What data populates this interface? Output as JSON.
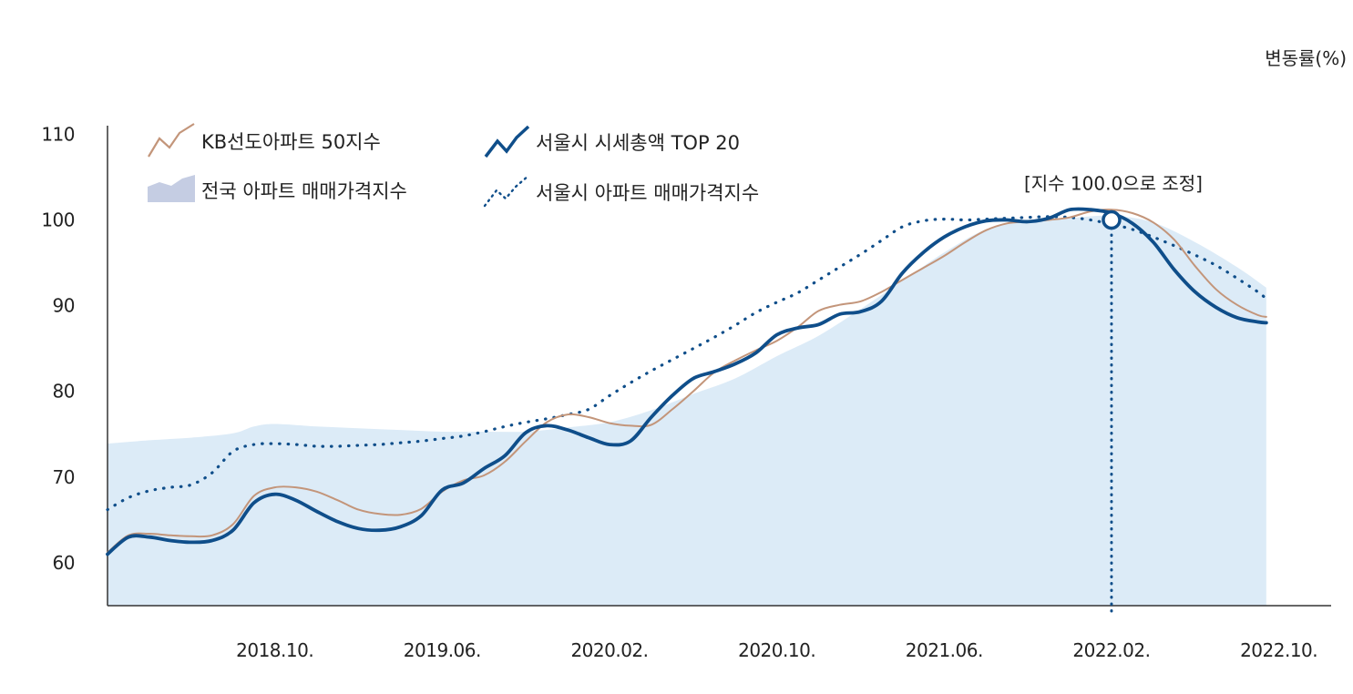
{
  "chart_data": {
    "type": "line",
    "unit_label": "변동률(%)",
    "y_axis": {
      "min": 55,
      "max": 111,
      "ticks": [
        60,
        70,
        80,
        90,
        100,
        110
      ]
    },
    "x_axis": {
      "start": 2018.0833,
      "end": 2022.9583,
      "tick_labels": [
        {
          "label": "2018.10.",
          "t": 2018.75
        },
        {
          "label": "2019.06.",
          "t": 2019.4167
        },
        {
          "label": "2020.02.",
          "t": 2020.0833
        },
        {
          "label": "2020.10.",
          "t": 2020.75
        },
        {
          "label": "2021.06.",
          "t": 2021.4167
        },
        {
          "label": "2022.02.",
          "t": 2022.0833
        },
        {
          "label": "2022.10.",
          "t": 2022.75
        }
      ]
    },
    "annotation": {
      "label": "[지수 100.0으로 조정]",
      "t": 2022.0833,
      "value": 100
    },
    "series": [
      {
        "name": "KB선도아파트 50지수",
        "style": "line",
        "color": "#c3957a",
        "points": [
          [
            2018.0833,
            61.2
          ],
          [
            2018.1667,
            63.2
          ],
          [
            2018.25,
            63.4
          ],
          [
            2018.3333,
            63.2
          ],
          [
            2018.4167,
            63.1
          ],
          [
            2018.5,
            63.2
          ],
          [
            2018.5833,
            64.5
          ],
          [
            2018.6667,
            67.8
          ],
          [
            2018.75,
            68.8
          ],
          [
            2018.8333,
            68.8
          ],
          [
            2018.9167,
            68.3
          ],
          [
            2019.0,
            67.3
          ],
          [
            2019.0833,
            66.2
          ],
          [
            2019.1667,
            65.7
          ],
          [
            2019.25,
            65.6
          ],
          [
            2019.3333,
            66.3
          ],
          [
            2019.4167,
            68.3
          ],
          [
            2019.5,
            69.6
          ],
          [
            2019.5833,
            70.2
          ],
          [
            2019.6667,
            71.8
          ],
          [
            2019.75,
            74.2
          ],
          [
            2019.8333,
            76.4
          ],
          [
            2019.9167,
            77.3
          ],
          [
            2020.0,
            77.0
          ],
          [
            2020.0833,
            76.3
          ],
          [
            2020.1667,
            76.0
          ],
          [
            2020.25,
            76.1
          ],
          [
            2020.3333,
            77.9
          ],
          [
            2020.4167,
            80.0
          ],
          [
            2020.5,
            82.2
          ],
          [
            2020.5833,
            83.6
          ],
          [
            2020.6667,
            84.8
          ],
          [
            2020.75,
            85.9
          ],
          [
            2020.8333,
            87.5
          ],
          [
            2020.9167,
            89.4
          ],
          [
            2021.0,
            90.1
          ],
          [
            2021.0833,
            90.5
          ],
          [
            2021.1667,
            91.6
          ],
          [
            2021.25,
            93.0
          ],
          [
            2021.3333,
            94.4
          ],
          [
            2021.4167,
            95.8
          ],
          [
            2021.5,
            97.4
          ],
          [
            2021.5833,
            98.8
          ],
          [
            2021.6667,
            99.6
          ],
          [
            2021.75,
            99.8
          ],
          [
            2021.8333,
            100.0
          ],
          [
            2021.9167,
            100.3
          ],
          [
            2022.0,
            101.0
          ],
          [
            2022.0833,
            101.2
          ],
          [
            2022.1667,
            100.8
          ],
          [
            2022.25,
            99.7
          ],
          [
            2022.3333,
            97.7
          ],
          [
            2022.4167,
            94.6
          ],
          [
            2022.5,
            91.9
          ],
          [
            2022.5833,
            90.1
          ],
          [
            2022.6667,
            88.9
          ],
          [
            2022.7,
            88.7
          ]
        ]
      },
      {
        "name": "서울시 시세총액 TOP 20",
        "style": "line",
        "color": "#0f4e8a",
        "points": [
          [
            2018.0833,
            61.0
          ],
          [
            2018.1667,
            63.0
          ],
          [
            2018.25,
            63.0
          ],
          [
            2018.3333,
            62.6
          ],
          [
            2018.4167,
            62.4
          ],
          [
            2018.5,
            62.6
          ],
          [
            2018.5833,
            63.8
          ],
          [
            2018.6667,
            67.0
          ],
          [
            2018.75,
            68.0
          ],
          [
            2018.8333,
            67.3
          ],
          [
            2018.9167,
            66.0
          ],
          [
            2019.0,
            64.8
          ],
          [
            2019.0833,
            64.0
          ],
          [
            2019.1667,
            63.8
          ],
          [
            2019.25,
            64.2
          ],
          [
            2019.3333,
            65.5
          ],
          [
            2019.4167,
            68.5
          ],
          [
            2019.5,
            69.3
          ],
          [
            2019.5833,
            71.0
          ],
          [
            2019.6667,
            72.5
          ],
          [
            2019.75,
            75.2
          ],
          [
            2019.8333,
            76.0
          ],
          [
            2019.9167,
            75.5
          ],
          [
            2020.0,
            74.6
          ],
          [
            2020.0833,
            73.8
          ],
          [
            2020.1667,
            74.2
          ],
          [
            2020.25,
            77.0
          ],
          [
            2020.3333,
            79.5
          ],
          [
            2020.4167,
            81.5
          ],
          [
            2020.5,
            82.3
          ],
          [
            2020.5833,
            83.2
          ],
          [
            2020.6667,
            84.5
          ],
          [
            2020.75,
            86.6
          ],
          [
            2020.8333,
            87.4
          ],
          [
            2020.9167,
            87.8
          ],
          [
            2021.0,
            89.0
          ],
          [
            2021.0833,
            89.3
          ],
          [
            2021.1667,
            90.5
          ],
          [
            2021.25,
            93.8
          ],
          [
            2021.3333,
            96.2
          ],
          [
            2021.4167,
            98.0
          ],
          [
            2021.5,
            99.2
          ],
          [
            2021.5833,
            99.9
          ],
          [
            2021.6667,
            100.0
          ],
          [
            2021.75,
            99.8
          ],
          [
            2021.8333,
            100.2
          ],
          [
            2021.9167,
            101.2
          ],
          [
            2022.0,
            101.2
          ],
          [
            2022.0833,
            100.8
          ],
          [
            2022.1667,
            99.6
          ],
          [
            2022.25,
            97.4
          ],
          [
            2022.3333,
            94.2
          ],
          [
            2022.4167,
            91.6
          ],
          [
            2022.5,
            89.8
          ],
          [
            2022.5833,
            88.6
          ],
          [
            2022.6667,
            88.1
          ],
          [
            2022.7,
            88.0
          ]
        ]
      },
      {
        "name": "서울시 아파트 매매가격지수",
        "style": "dotted",
        "color": "#0f4e8a",
        "points": [
          [
            2018.0833,
            66.2
          ],
          [
            2018.1667,
            67.6
          ],
          [
            2018.25,
            68.4
          ],
          [
            2018.3333,
            68.8
          ],
          [
            2018.4167,
            69.1
          ],
          [
            2018.5,
            70.5
          ],
          [
            2018.5833,
            73.0
          ],
          [
            2018.6667,
            73.8
          ],
          [
            2018.75,
            73.9
          ],
          [
            2018.8333,
            73.8
          ],
          [
            2018.9167,
            73.6
          ],
          [
            2019.0,
            73.6
          ],
          [
            2019.0833,
            73.7
          ],
          [
            2019.1667,
            73.8
          ],
          [
            2019.25,
            74.0
          ],
          [
            2019.3333,
            74.2
          ],
          [
            2019.4167,
            74.5
          ],
          [
            2019.5,
            74.8
          ],
          [
            2019.5833,
            75.3
          ],
          [
            2019.6667,
            75.9
          ],
          [
            2019.75,
            76.4
          ],
          [
            2019.8333,
            76.8
          ],
          [
            2019.9167,
            77.3
          ],
          [
            2020.0,
            77.9
          ],
          [
            2020.0833,
            79.5
          ],
          [
            2020.1667,
            81.0
          ],
          [
            2020.25,
            82.4
          ],
          [
            2020.3333,
            83.7
          ],
          [
            2020.4167,
            85.0
          ],
          [
            2020.5,
            86.3
          ],
          [
            2020.5833,
            87.7
          ],
          [
            2020.6667,
            89.2
          ],
          [
            2020.75,
            90.4
          ],
          [
            2020.8333,
            91.5
          ],
          [
            2020.9167,
            93.0
          ],
          [
            2021.0,
            94.5
          ],
          [
            2021.0833,
            96.0
          ],
          [
            2021.1667,
            97.6
          ],
          [
            2021.25,
            99.2
          ],
          [
            2021.3333,
            99.9
          ],
          [
            2021.4167,
            100.1
          ],
          [
            2021.5,
            100.0
          ],
          [
            2021.5833,
            100.1
          ],
          [
            2021.6667,
            100.2
          ],
          [
            2021.75,
            100.3
          ],
          [
            2021.8333,
            100.4
          ],
          [
            2021.9167,
            100.3
          ],
          [
            2022.0,
            100.0
          ],
          [
            2022.0833,
            99.5
          ],
          [
            2022.1667,
            98.9
          ],
          [
            2022.25,
            98.0
          ],
          [
            2022.3333,
            97.0
          ],
          [
            2022.4167,
            95.9
          ],
          [
            2022.5,
            94.7
          ],
          [
            2022.5833,
            93.2
          ],
          [
            2022.6667,
            91.6
          ],
          [
            2022.7,
            90.8
          ]
        ]
      },
      {
        "name": "전국 아파트 매매가격지수",
        "style": "area",
        "color": "#dcebf7",
        "points": [
          [
            2018.0833,
            73.9
          ],
          [
            2018.25,
            74.3
          ],
          [
            2018.4167,
            74.6
          ],
          [
            2018.5833,
            75.1
          ],
          [
            2018.6667,
            75.9
          ],
          [
            2018.75,
            76.2
          ],
          [
            2018.9167,
            75.9
          ],
          [
            2019.0833,
            75.7
          ],
          [
            2019.25,
            75.5
          ],
          [
            2019.4167,
            75.3
          ],
          [
            2019.5833,
            75.3
          ],
          [
            2019.75,
            75.3
          ],
          [
            2019.9167,
            75.8
          ],
          [
            2020.0833,
            76.4
          ],
          [
            2020.25,
            77.8
          ],
          [
            2020.4167,
            79.7
          ],
          [
            2020.5833,
            81.5
          ],
          [
            2020.75,
            84.1
          ],
          [
            2020.9167,
            86.5
          ],
          [
            2021.0833,
            89.6
          ],
          [
            2021.25,
            92.9
          ],
          [
            2021.4167,
            96.2
          ],
          [
            2021.5833,
            98.9
          ],
          [
            2021.75,
            99.9
          ],
          [
            2021.9167,
            100.2
          ],
          [
            2022.0833,
            100.5
          ],
          [
            2022.25,
            99.7
          ],
          [
            2022.4167,
            97.4
          ],
          [
            2022.5833,
            94.5
          ],
          [
            2022.7,
            92.1
          ]
        ]
      }
    ]
  }
}
